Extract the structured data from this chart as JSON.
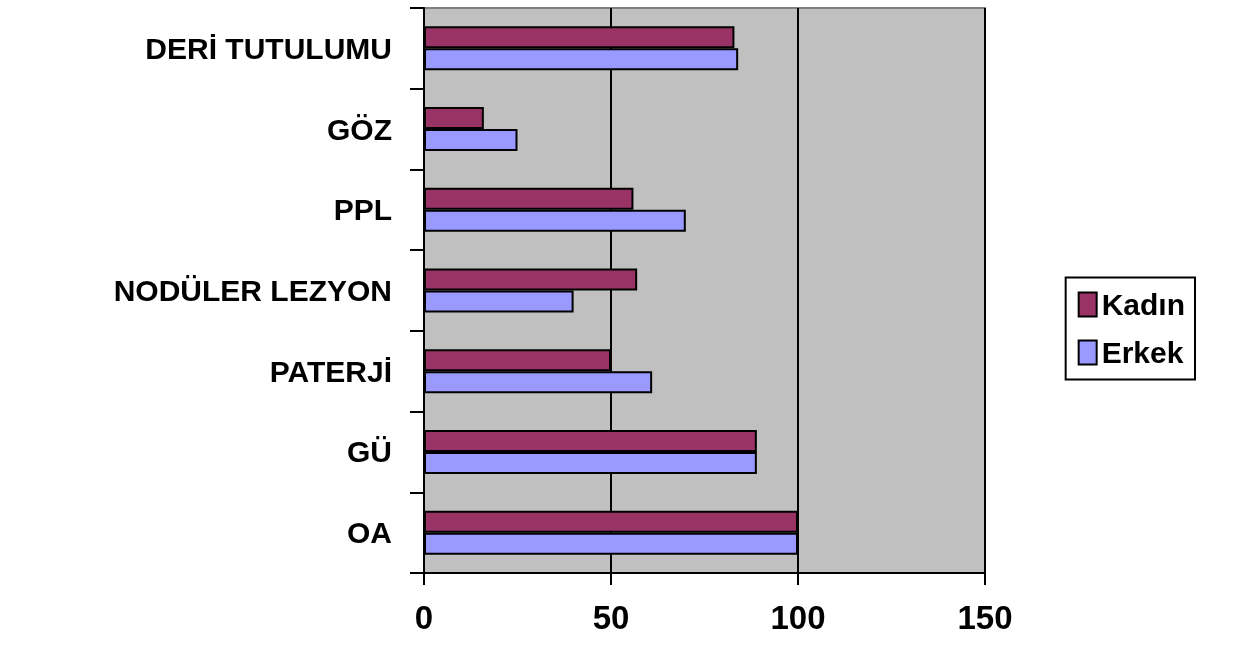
{
  "chart_data": {
    "type": "bar",
    "orientation": "horizontal",
    "categories": [
      "DERİ TUTULUMU",
      "GÖZ",
      "PPL",
      "NODÜLER LEZYON",
      "PATERJİ",
      "GÜ",
      "OA"
    ],
    "series": [
      {
        "name": "Kadın",
        "color": "#993366",
        "values": [
          83,
          16,
          56,
          57,
          50,
          89,
          100
        ]
      },
      {
        "name": "Erkek",
        "color": "#9999ff",
        "values": [
          84,
          25,
          70,
          40,
          61,
          89,
          100
        ]
      }
    ],
    "xlim": [
      0,
      150
    ],
    "xticks": [
      0,
      50,
      100,
      150
    ],
    "grid": "x",
    "legend": "right"
  }
}
